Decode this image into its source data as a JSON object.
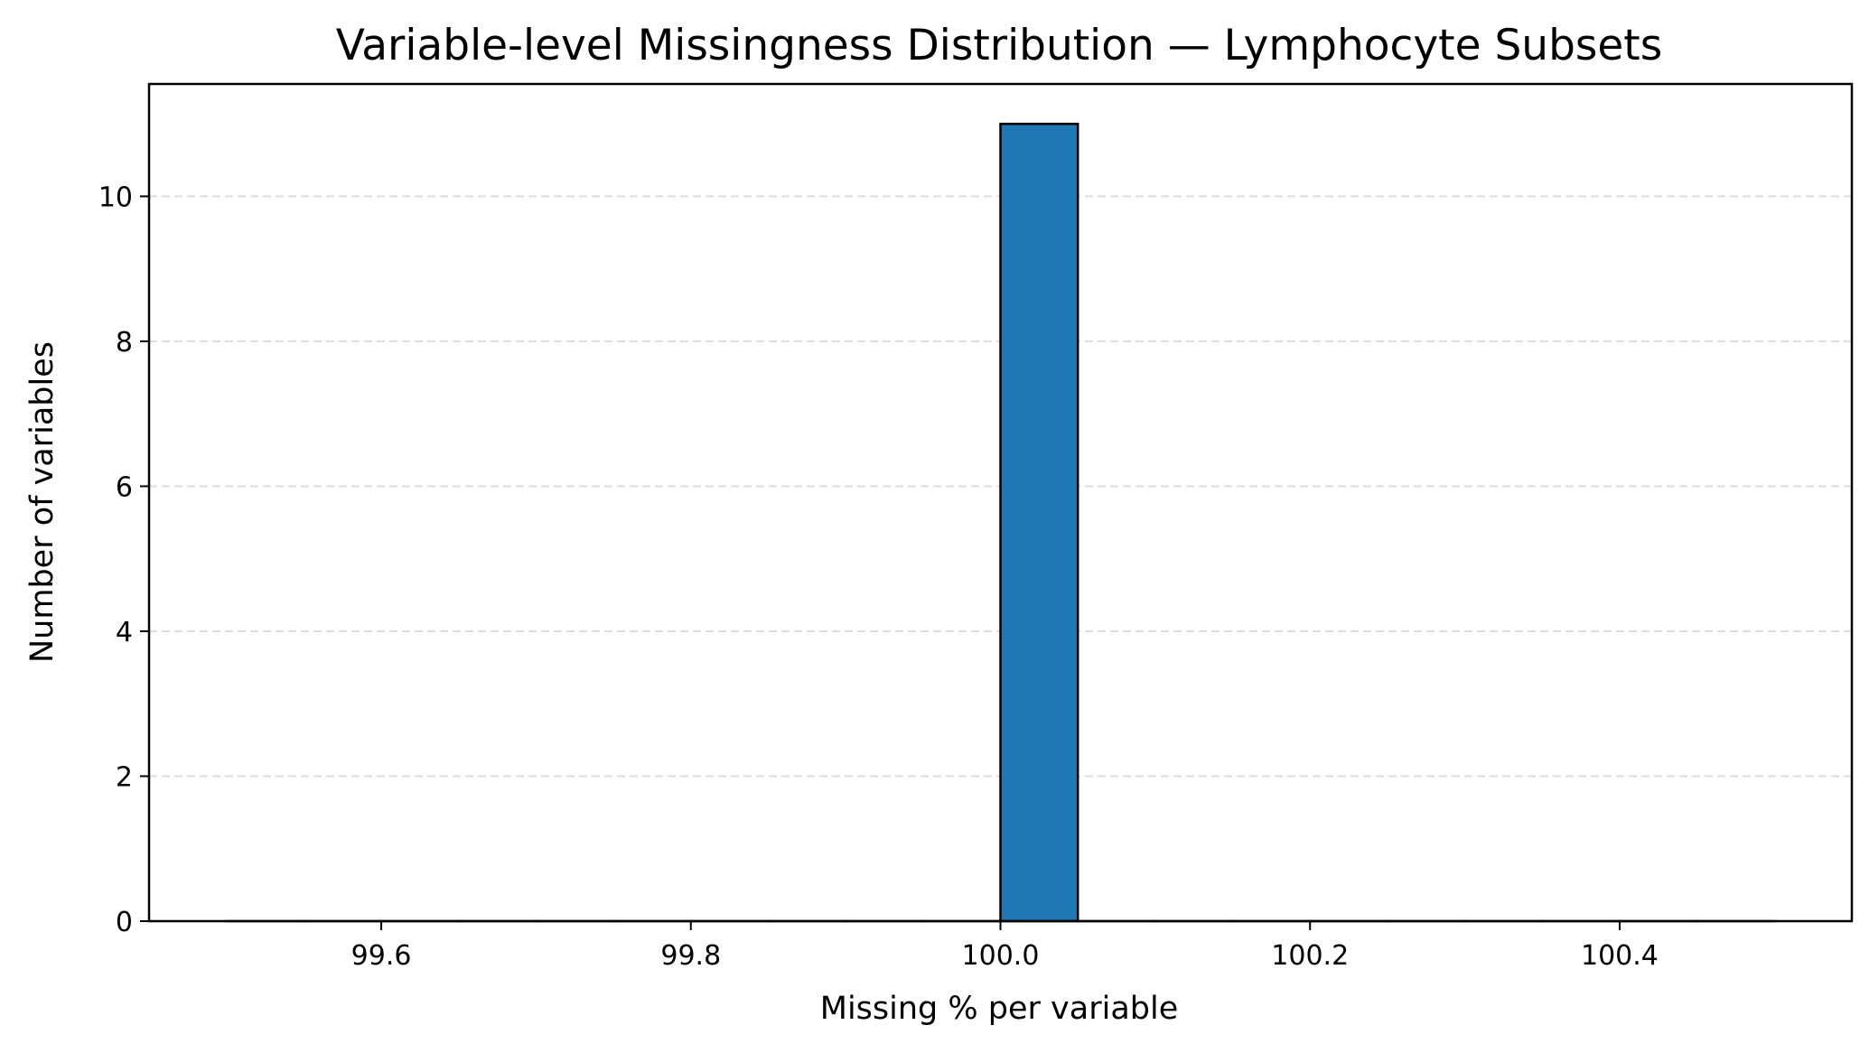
{
  "chart_data": {
    "type": "bar",
    "title": "Variable-level Missingness Distribution — Lymphocyte Subsets",
    "xlabel": "Missing % per variable",
    "ylabel": "Number of variables",
    "xlim": [
      99.45,
      100.55
    ],
    "ylim": [
      0,
      11.55
    ],
    "x_ticks": [
      99.6,
      99.8,
      100.0,
      100.2,
      100.4
    ],
    "x_tick_labels": [
      "99.6",
      "99.8",
      "100.0",
      "100.2",
      "100.4"
    ],
    "y_ticks": [
      0,
      2,
      4,
      6,
      8,
      10
    ],
    "y_tick_labels": [
      "0",
      "2",
      "4",
      "6",
      "8",
      "10"
    ],
    "bins": {
      "start": 99.5,
      "end": 100.5,
      "width": 0.05,
      "counts": [
        0,
        0,
        0,
        0,
        0,
        0,
        0,
        0,
        0,
        0,
        11,
        0,
        0,
        0,
        0,
        0,
        0,
        0,
        0,
        0
      ]
    },
    "grid": {
      "y": true,
      "x": false,
      "style": "dashed"
    },
    "legend": "none",
    "colors": {
      "bar_fill": "#1f77b4",
      "bar_edge": "#000000",
      "grid": "#dddddd"
    }
  }
}
